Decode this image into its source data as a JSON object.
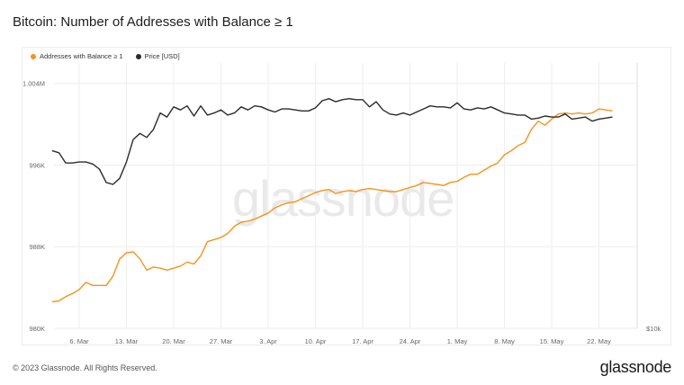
{
  "title": "Bitcoin: Number of Addresses with Balance ≥ 1",
  "footer": {
    "copyright": "© 2023 Glassnode. All Rights Reserved.",
    "logo": "glassnode"
  },
  "watermark": "glassnode",
  "colors": {
    "addresses": "#f7931a",
    "price": "#2b2b2b",
    "grid": "#eeeeee",
    "axis_text": "#666666"
  },
  "chart_data": {
    "type": "line",
    "title": "Bitcoin: Number of Addresses with Balance ≥ 1",
    "legend": [
      {
        "name": "Addresses with Balance ≥ 1",
        "color": "#f7931a"
      },
      {
        "name": "Price [USD]",
        "color": "#2b2b2b"
      }
    ],
    "x_ticks": [
      "6. Mar",
      "13. Mar",
      "20. Mar",
      "27. Mar",
      "3. Apr",
      "10. Apr",
      "17. Apr",
      "24. Apr",
      "1. May",
      "8. May",
      "15. May",
      "22. May"
    ],
    "y_left": {
      "ticks": [
        "980K",
        "988K",
        "996K",
        "1.004M"
      ],
      "tick_values": [
        980000,
        988000,
        996000,
        1004000
      ],
      "ylim": [
        980000,
        1006000
      ]
    },
    "y_right": {
      "ticks": [
        "$10k"
      ]
    },
    "x": [
      "2023-03-02",
      "2023-03-03",
      "2023-03-04",
      "2023-03-05",
      "2023-03-06",
      "2023-03-07",
      "2023-03-08",
      "2023-03-09",
      "2023-03-10",
      "2023-03-11",
      "2023-03-12",
      "2023-03-13",
      "2023-03-14",
      "2023-03-15",
      "2023-03-16",
      "2023-03-17",
      "2023-03-18",
      "2023-03-19",
      "2023-03-20",
      "2023-03-21",
      "2023-03-22",
      "2023-03-23",
      "2023-03-24",
      "2023-03-25",
      "2023-03-26",
      "2023-03-27",
      "2023-03-28",
      "2023-03-29",
      "2023-03-30",
      "2023-03-31",
      "2023-04-01",
      "2023-04-02",
      "2023-04-03",
      "2023-04-04",
      "2023-04-05",
      "2023-04-06",
      "2023-04-07",
      "2023-04-08",
      "2023-04-09",
      "2023-04-10",
      "2023-04-11",
      "2023-04-12",
      "2023-04-13",
      "2023-04-14",
      "2023-04-15",
      "2023-04-16",
      "2023-04-17",
      "2023-04-18",
      "2023-04-19",
      "2023-04-20",
      "2023-04-21",
      "2023-04-22",
      "2023-04-23",
      "2023-04-24",
      "2023-04-25",
      "2023-04-26",
      "2023-04-27",
      "2023-04-28",
      "2023-04-29",
      "2023-04-30",
      "2023-05-01",
      "2023-05-02",
      "2023-05-03",
      "2023-05-04",
      "2023-05-05",
      "2023-05-06",
      "2023-05-07",
      "2023-05-08",
      "2023-05-09",
      "2023-05-10",
      "2023-05-11",
      "2023-05-12",
      "2023-05-13",
      "2023-05-14",
      "2023-05-15",
      "2023-05-16",
      "2023-05-17",
      "2023-05-18",
      "2023-05-19",
      "2023-05-20",
      "2023-05-21",
      "2023-05-22",
      "2023-05-23",
      "2023-05-24"
    ],
    "series": [
      {
        "name": "Addresses with Balance ≥ 1",
        "axis": "left",
        "values": [
          982600,
          982700,
          983100,
          983400,
          983800,
          984500,
          984200,
          984200,
          984200,
          985100,
          986800,
          987400,
          987500,
          986800,
          985700,
          986000,
          985900,
          985700,
          985900,
          986100,
          986500,
          986300,
          987100,
          988500,
          988700,
          988900,
          989300,
          990000,
          990400,
          990500,
          990700,
          991000,
          991300,
          991800,
          992100,
          992300,
          992400,
          992700,
          993000,
          993300,
          993500,
          993600,
          993200,
          993400,
          993500,
          993400,
          993600,
          993700,
          993600,
          993500,
          993400,
          993400,
          993600,
          993800,
          994000,
          994300,
          994200,
          994100,
          994000,
          994300,
          994400,
          994800,
          995100,
          995100,
          995500,
          995900,
          996200,
          997000,
          997400,
          997900,
          998200,
          999500,
          1000300,
          999900,
          1000500,
          1001000,
          1001100,
          1001000,
          1001100,
          1001000,
          1001100,
          1001500,
          1001400,
          1001300
        ]
      },
      {
        "name": "Price [USD]",
        "axis": "left",
        "values": [
          997400,
          997200,
          996200,
          996200,
          996300,
          996300,
          996100,
          995600,
          994300,
          994100,
          994700,
          996300,
          998500,
          999100,
          998700,
          999500,
          1001100,
          1000700,
          1001700,
          1001400,
          1001800,
          1000800,
          1001800,
          1000900,
          1001100,
          1001400,
          1000900,
          1001100,
          1001700,
          1001400,
          1001800,
          1001700,
          1001400,
          1001200,
          1001500,
          1001500,
          1001400,
          1001300,
          1001300,
          1001600,
          1002300,
          1002500,
          1002200,
          1002400,
          1002500,
          1002400,
          1002400,
          1001700,
          1002200,
          1001400,
          1001000,
          1000900,
          1001100,
          1000900,
          1001200,
          1001500,
          1001800,
          1001700,
          1001700,
          1001600,
          1002100,
          1001500,
          1001400,
          1001600,
          1001500,
          1001700,
          1001400,
          1001100,
          1001000,
          1000900,
          1000900,
          1000500,
          1000600,
          1000800,
          1000700,
          1000700,
          1001000,
          1000500,
          1000600,
          1000700,
          1000300,
          1000500,
          1000600,
          1000700
        ]
      }
    ]
  }
}
